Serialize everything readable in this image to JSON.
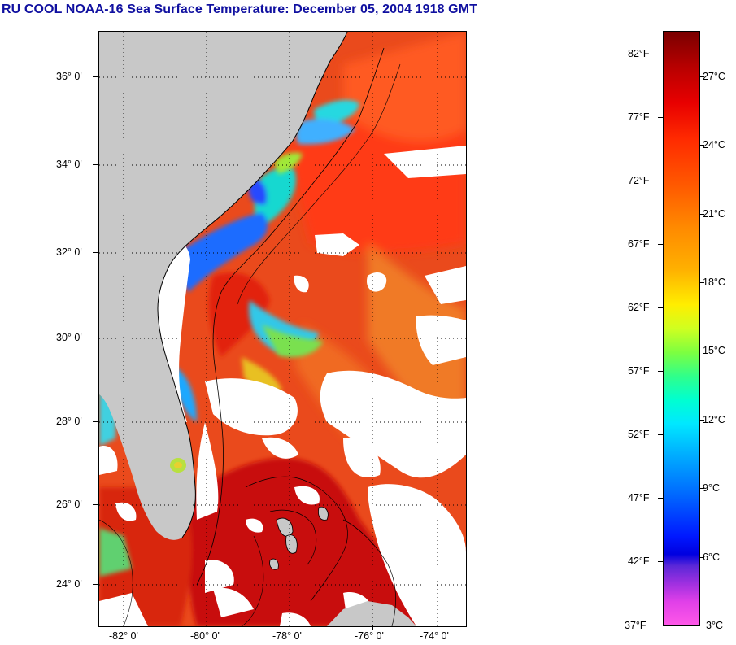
{
  "title": "RU COOL  NOAA-16  Sea Surface Temperature:  December 05, 2004 1918 GMT",
  "map": {
    "lat_labels": [
      "36° 0'",
      "34° 0'",
      "32° 0'",
      "30° 0'",
      "28° 0'",
      "26° 0'",
      "24° 0'"
    ],
    "lon_labels": [
      "-82° 0'",
      "-80° 0'",
      "-78° 0'",
      "-76° 0'",
      "-74° 0'"
    ],
    "colors": {
      "land": "#c8c8c8",
      "cloud": "#ffffff",
      "warm": "#e9441a",
      "gulf_stream": "#e00000",
      "cold_shelf": "#1e7cff",
      "coastline": "#000000"
    }
  },
  "colorbar": {
    "fahrenheit_labels": [
      "82°F",
      "77°F",
      "72°F",
      "67°F",
      "62°F",
      "57°F",
      "52°F",
      "47°F",
      "42°F",
      "37°F"
    ],
    "celsius_labels": [
      "27°C",
      "24°C",
      "21°C",
      "18°C",
      "15°C",
      "12°C",
      "9°C",
      "6°C",
      "3°C"
    ]
  }
}
